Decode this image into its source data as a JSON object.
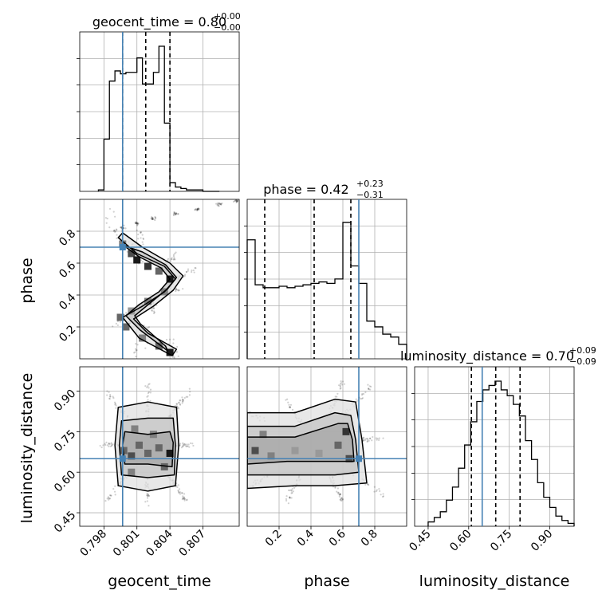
{
  "chart_data": {
    "type": "corner",
    "grid": true,
    "truth_color": "#4682b4",
    "contour_color": "#000000",
    "parameters": [
      {
        "name": "geocent_time",
        "axis_label": "geocent_time",
        "range": [
          0.7958,
          0.8103
        ],
        "ticks": [
          0.798,
          0.801,
          0.804,
          0.807
        ],
        "tick_labels": [
          "0.798",
          "0.801",
          "0.804",
          "0.807"
        ],
        "truth": 0.7997,
        "quantiles": [
          0.7997,
          0.8018,
          0.804
        ],
        "title_main": "geocent_time = 0.80",
        "title_plus": "+0.00",
        "title_minus": "−0.00",
        "hist_edges": [
          0.7975,
          0.798,
          0.7985,
          0.799,
          0.7995,
          0.8,
          0.8005,
          0.801,
          0.8015,
          0.802,
          0.8025,
          0.803,
          0.8035,
          0.804,
          0.8045,
          0.805,
          0.8055,
          0.806,
          0.8065,
          0.807,
          0.8075,
          0.808,
          0.8085
        ],
        "hist_counts": [
          0.01,
          0.36,
          0.76,
          0.83,
          0.81,
          0.82,
          0.82,
          0.92,
          0.74,
          0.74,
          0.82,
          1.0,
          0.47,
          0.06,
          0.03,
          0.02,
          0.01,
          0.01,
          0.01,
          0.0,
          0.0,
          0.0
        ]
      },
      {
        "name": "phase",
        "axis_label": "phase",
        "range": [
          0.0,
          1.0
        ],
        "ticks": [
          0.2,
          0.4,
          0.6,
          0.8
        ],
        "tick_labels": [
          "0.2",
          "0.4",
          "0.6",
          "0.8"
        ],
        "truth": 0.7,
        "quantiles": [
          0.11,
          0.42,
          0.65
        ],
        "title_main": "phase = 0.42",
        "title_plus": "+0.23",
        "title_minus": "−0.31",
        "hist_edges": [
          0.0,
          0.05,
          0.1,
          0.15,
          0.2,
          0.25,
          0.3,
          0.35,
          0.4,
          0.45,
          0.5,
          0.55,
          0.6,
          0.65,
          0.7,
          0.75,
          0.8,
          0.85,
          0.9,
          0.95,
          1.0
        ],
        "hist_counts": [
          0.82,
          0.51,
          0.49,
          0.49,
          0.5,
          0.49,
          0.5,
          0.51,
          0.52,
          0.53,
          0.52,
          0.55,
          0.94,
          0.64,
          0.52,
          0.26,
          0.22,
          0.17,
          0.15,
          0.1
        ]
      },
      {
        "name": "luminosity_distance",
        "axis_label": "luminosity_distance",
        "range": [
          0.4,
          0.99
        ],
        "ticks": [
          0.45,
          0.6,
          0.75,
          0.9
        ],
        "tick_labels": [
          "0.45",
          "0.60",
          "0.75",
          "0.90"
        ],
        "truth": 0.65,
        "quantiles": [
          0.61,
          0.7,
          0.79
        ],
        "title_main": "luminosity_distance = 0.70",
        "title_plus": "+0.09",
        "title_minus": "−0.09",
        "hist_edges": [
          0.45,
          0.4725,
          0.495,
          0.5175,
          0.54,
          0.5625,
          0.585,
          0.6075,
          0.63,
          0.6525,
          0.675,
          0.6975,
          0.72,
          0.7425,
          0.765,
          0.7875,
          0.81,
          0.8325,
          0.855,
          0.8775,
          0.9,
          0.9225,
          0.945,
          0.9675,
          0.99
        ],
        "hist_counts": [
          0.03,
          0.06,
          0.1,
          0.18,
          0.27,
          0.4,
          0.56,
          0.72,
          0.86,
          0.94,
          0.97,
          1.0,
          0.94,
          0.9,
          0.84,
          0.76,
          0.59,
          0.46,
          0.3,
          0.2,
          0.13,
          0.07,
          0.04,
          0.02
        ]
      }
    ],
    "panels_2d": [
      {
        "x": "geocent_time",
        "y": "phase",
        "density_cells": [
          {
            "x": 0.7997,
            "y": 0.72,
            "d": 0.5
          },
          {
            "x": 0.8005,
            "y": 0.66,
            "d": 0.7
          },
          {
            "x": 0.801,
            "y": 0.62,
            "d": 0.9
          },
          {
            "x": 0.802,
            "y": 0.58,
            "d": 0.8
          },
          {
            "x": 0.803,
            "y": 0.55,
            "d": 0.6
          },
          {
            "x": 0.804,
            "y": 0.5,
            "d": 0.9
          },
          {
            "x": 0.8035,
            "y": 0.42,
            "d": 0.5
          },
          {
            "x": 0.802,
            "y": 0.36,
            "d": 0.5
          },
          {
            "x": 0.8005,
            "y": 0.3,
            "d": 0.4
          },
          {
            "x": 0.7995,
            "y": 0.26,
            "d": 0.6
          },
          {
            "x": 0.8,
            "y": 0.2,
            "d": 0.6
          },
          {
            "x": 0.8015,
            "y": 0.13,
            "d": 0.5
          },
          {
            "x": 0.803,
            "y": 0.08,
            "d": 0.6
          },
          {
            "x": 0.804,
            "y": 0.04,
            "d": 0.9
          }
        ],
        "samples_path": [
          [
            0.7997,
            0.82
          ],
          [
            0.801,
            0.85
          ],
          [
            0.8025,
            0.88
          ],
          [
            0.8045,
            0.91
          ],
          [
            0.8065,
            0.94
          ],
          [
            0.8085,
            0.97
          ],
          [
            0.81,
            0.99
          ]
        ],
        "contours": [
          [
            [
              0.7993,
              0.76
            ],
            [
              0.801,
              0.66
            ],
            [
              0.8035,
              0.58
            ],
            [
              0.8045,
              0.5
            ],
            [
              0.8035,
              0.42
            ],
            [
              0.8015,
              0.33
            ],
            [
              0.7997,
              0.26
            ],
            [
              0.8012,
              0.13
            ],
            [
              0.8042,
              0.02
            ],
            [
              0.8046,
              0.06
            ],
            [
              0.802,
              0.16
            ],
            [
              0.8007,
              0.25
            ],
            [
              0.8025,
              0.33
            ],
            [
              0.8043,
              0.43
            ],
            [
              0.8052,
              0.52
            ],
            [
              0.804,
              0.6
            ],
            [
              0.8015,
              0.7
            ],
            [
              0.7997,
              0.79
            ]
          ],
          [
            [
              0.7998,
              0.71
            ],
            [
              0.8012,
              0.64
            ],
            [
              0.8032,
              0.57
            ],
            [
              0.804,
              0.5
            ],
            [
              0.803,
              0.42
            ],
            [
              0.8012,
              0.34
            ],
            [
              0.8,
              0.27
            ],
            [
              0.8013,
              0.18
            ],
            [
              0.8038,
              0.05
            ],
            [
              0.8036,
              0.08
            ],
            [
              0.8013,
              0.22
            ],
            [
              0.8008,
              0.27
            ],
            [
              0.8022,
              0.35
            ],
            [
              0.8038,
              0.44
            ],
            [
              0.8046,
              0.51
            ],
            [
              0.8036,
              0.59
            ],
            [
              0.8015,
              0.67
            ]
          ]
        ]
      },
      {
        "x": "geocent_time",
        "y": "luminosity_distance",
        "density_cells": [
          {
            "x": 0.7998,
            "y": 0.68,
            "d": 0.6
          },
          {
            "x": 0.8005,
            "y": 0.66,
            "d": 0.7
          },
          {
            "x": 0.8012,
            "y": 0.7,
            "d": 0.6
          },
          {
            "x": 0.802,
            "y": 0.67,
            "d": 0.6
          },
          {
            "x": 0.803,
            "y": 0.69,
            "d": 0.6
          },
          {
            "x": 0.804,
            "y": 0.67,
            "d": 0.9
          },
          {
            "x": 0.8008,
            "y": 0.76,
            "d": 0.5
          },
          {
            "x": 0.8025,
            "y": 0.74,
            "d": 0.5
          },
          {
            "x": 0.8035,
            "y": 0.62,
            "d": 0.6
          },
          {
            "x": 0.8005,
            "y": 0.6,
            "d": 0.5
          }
        ],
        "contours": [
          [
            [
              0.7993,
              0.55
            ],
            [
              0.802,
              0.53
            ],
            [
              0.8045,
              0.55
            ],
            [
              0.8048,
              0.7
            ],
            [
              0.8046,
              0.84
            ],
            [
              0.802,
              0.86
            ],
            [
              0.7993,
              0.84
            ],
            [
              0.799,
              0.7
            ]
          ],
          [
            [
              0.7996,
              0.59
            ],
            [
              0.802,
              0.58
            ],
            [
              0.8044,
              0.59
            ],
            [
              0.8045,
              0.7
            ],
            [
              0.8043,
              0.8
            ],
            [
              0.802,
              0.8
            ],
            [
              0.7996,
              0.79
            ],
            [
              0.7994,
              0.7
            ]
          ],
          [
            [
              0.7999,
              0.63
            ],
            [
              0.802,
              0.63
            ],
            [
              0.8042,
              0.62
            ],
            [
              0.8043,
              0.71
            ],
            [
              0.804,
              0.75
            ],
            [
              0.802,
              0.74
            ],
            [
              0.7999,
              0.75
            ],
            [
              0.7997,
              0.7
            ]
          ]
        ]
      },
      {
        "x": "phase",
        "y": "luminosity_distance",
        "density_cells": [
          {
            "x": 0.05,
            "y": 0.68,
            "d": 0.7
          },
          {
            "x": 0.15,
            "y": 0.66,
            "d": 0.5
          },
          {
            "x": 0.3,
            "y": 0.68,
            "d": 0.4
          },
          {
            "x": 0.45,
            "y": 0.67,
            "d": 0.4
          },
          {
            "x": 0.57,
            "y": 0.7,
            "d": 0.6
          },
          {
            "x": 0.62,
            "y": 0.75,
            "d": 0.8
          },
          {
            "x": 0.64,
            "y": 0.65,
            "d": 0.7
          },
          {
            "x": 0.1,
            "y": 0.74,
            "d": 0.5
          }
        ],
        "contours": [
          [
            [
              0.0,
              0.54
            ],
            [
              0.3,
              0.55
            ],
            [
              0.55,
              0.55
            ],
            [
              0.75,
              0.56
            ],
            [
              0.72,
              0.72
            ],
            [
              0.68,
              0.86
            ],
            [
              0.55,
              0.87
            ],
            [
              0.3,
              0.82
            ],
            [
              0.0,
              0.82
            ]
          ],
          [
            [
              0.0,
              0.59
            ],
            [
              0.3,
              0.59
            ],
            [
              0.55,
              0.59
            ],
            [
              0.7,
              0.6
            ],
            [
              0.68,
              0.72
            ],
            [
              0.65,
              0.81
            ],
            [
              0.55,
              0.82
            ],
            [
              0.3,
              0.77
            ],
            [
              0.0,
              0.77
            ]
          ],
          [
            [
              0.0,
              0.63
            ],
            [
              0.25,
              0.64
            ],
            [
              0.55,
              0.64
            ],
            [
              0.67,
              0.64
            ],
            [
              0.66,
              0.72
            ],
            [
              0.63,
              0.78
            ],
            [
              0.57,
              0.78
            ],
            [
              0.3,
              0.73
            ],
            [
              0.0,
              0.73
            ]
          ]
        ]
      }
    ]
  }
}
